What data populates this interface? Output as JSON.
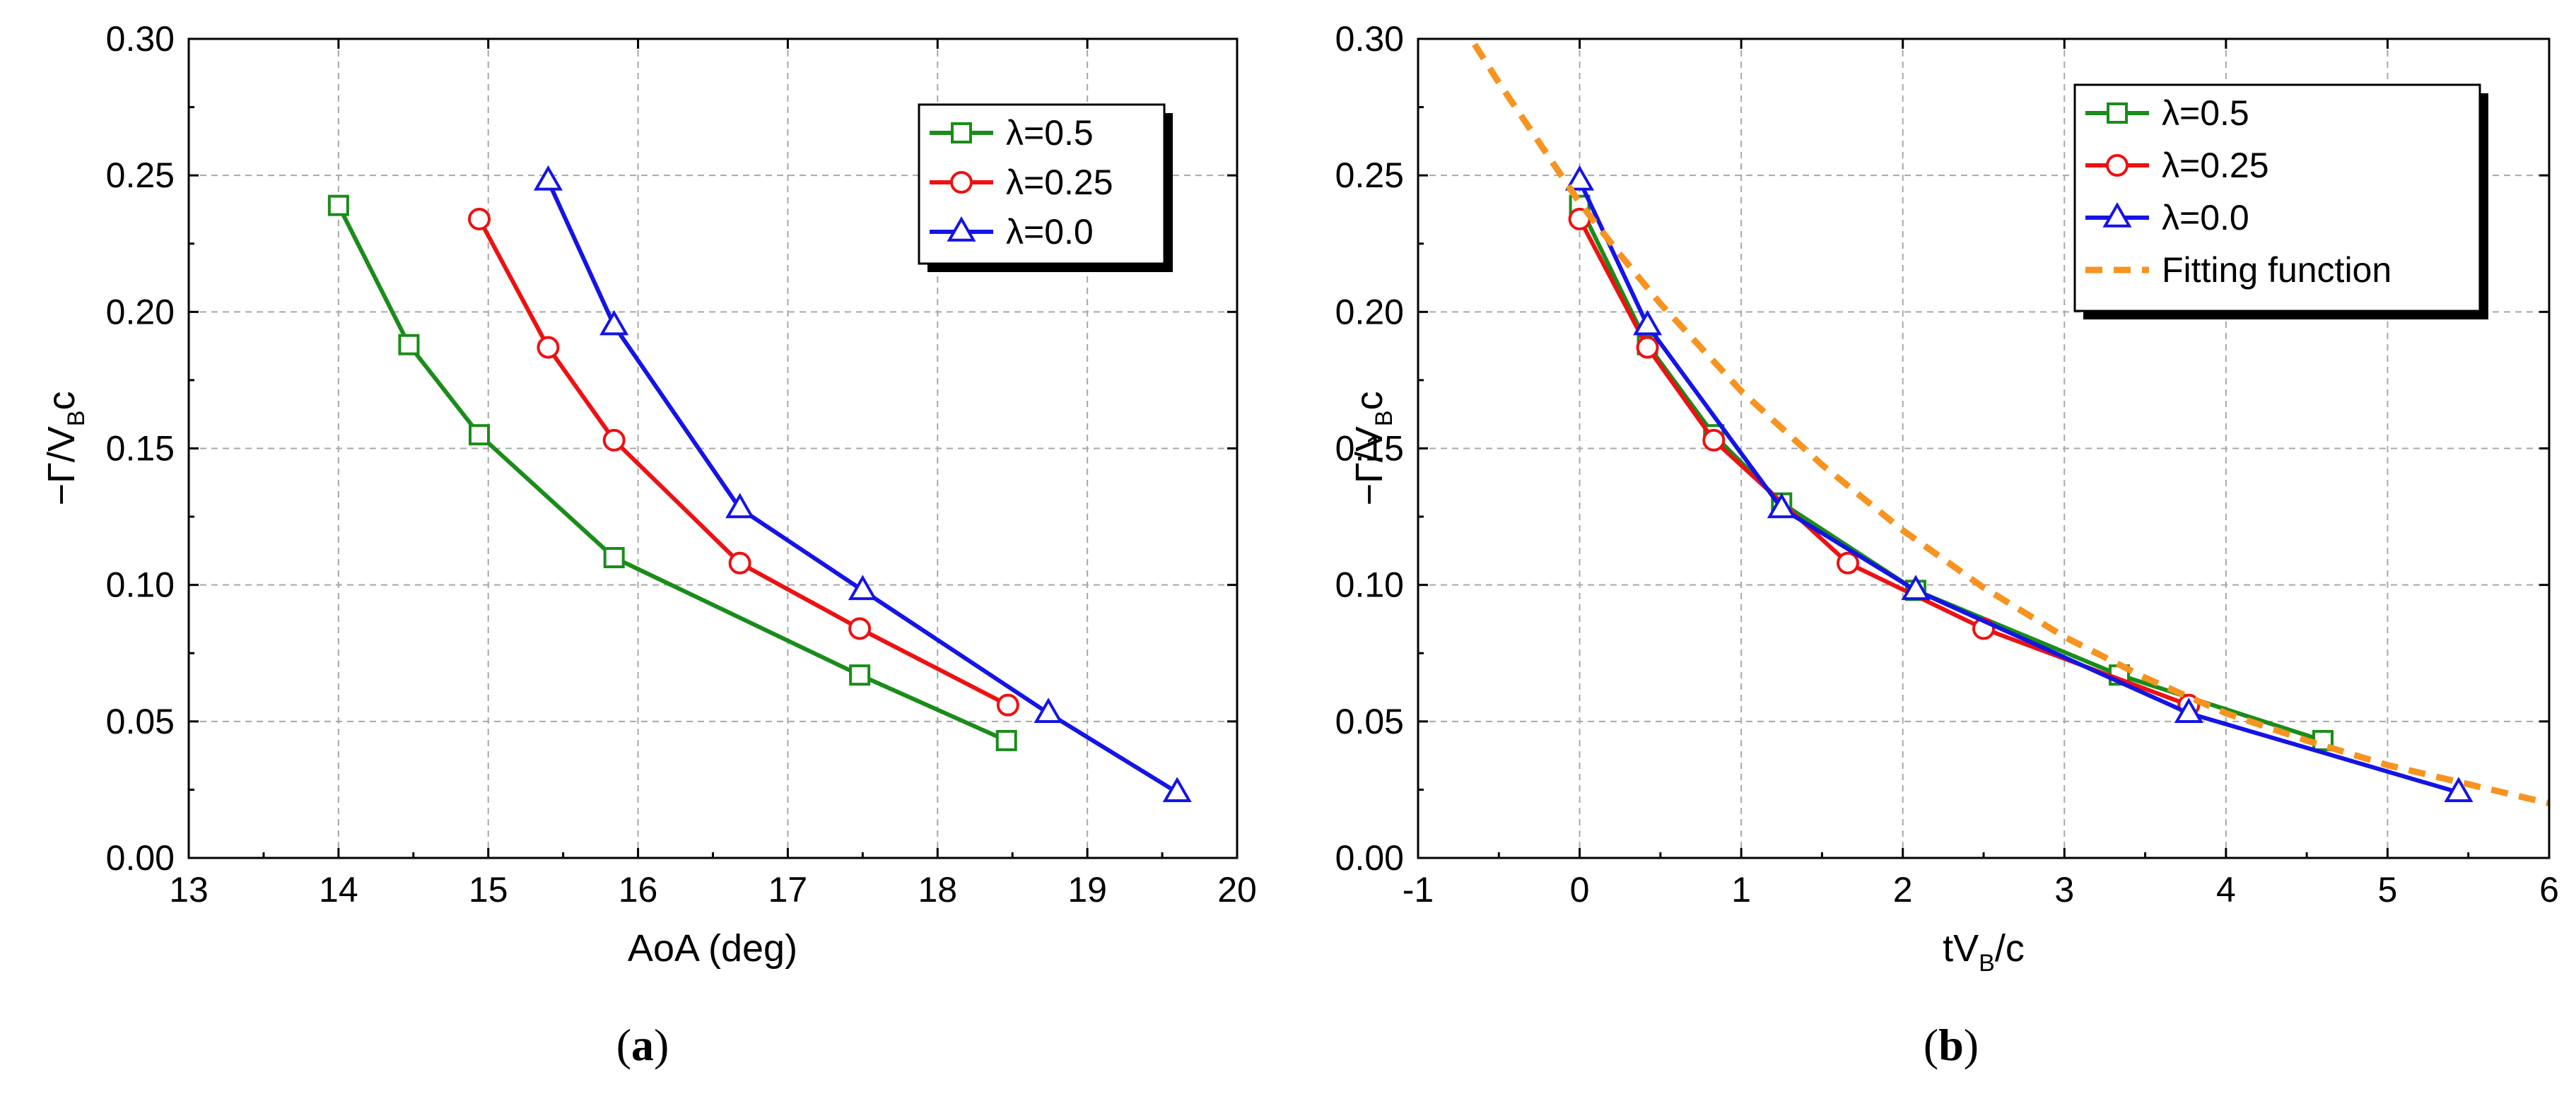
{
  "chart_data": [
    {
      "type": "line",
      "panel": "a",
      "caption_prefix": "(",
      "caption_letter": "a",
      "caption_suffix": ")",
      "xlabel": "AoA (deg)",
      "ylabel": "−Γ/V",
      "ylabel_sub": "B",
      "ylabel_tail": "c",
      "xlim": [
        13,
        20
      ],
      "ylim": [
        0.0,
        0.3
      ],
      "xticks": [
        13,
        14,
        15,
        16,
        17,
        18,
        19,
        20
      ],
      "xtick_labels": [
        "13",
        "14",
        "15",
        "16",
        "17",
        "18",
        "19",
        "20"
      ],
      "yticks": [
        0.0,
        0.05,
        0.1,
        0.15,
        0.2,
        0.25,
        0.3
      ],
      "ytick_labels": [
        "0.00",
        "0.05",
        "0.10",
        "0.15",
        "0.20",
        "0.25",
        "0.30"
      ],
      "grid": true,
      "legend_position": "top-right",
      "series": [
        {
          "name": "λ=0.5",
          "color": "#1a8c1a",
          "marker": "square",
          "x": [
            14.0,
            14.47,
            14.94,
            15.84,
            17.48,
            18.46
          ],
          "y": [
            0.239,
            0.188,
            0.155,
            0.11,
            0.067,
            0.043
          ]
        },
        {
          "name": "λ=0.25",
          "color": "#ee1111",
          "marker": "circle",
          "x": [
            14.94,
            15.4,
            15.84,
            16.68,
            17.48,
            18.47
          ],
          "y": [
            0.234,
            0.187,
            0.153,
            0.108,
            0.084,
            0.056
          ]
        },
        {
          "name": "λ=0.0",
          "color": "#1414e6",
          "marker": "triangle",
          "x": [
            15.4,
            15.84,
            16.68,
            17.5,
            18.74,
            19.6
          ],
          "y": [
            0.248,
            0.195,
            0.128,
            0.098,
            0.053,
            0.024
          ]
        }
      ]
    },
    {
      "type": "line",
      "panel": "b",
      "caption_prefix": "(",
      "caption_letter": "b",
      "caption_suffix": ")",
      "xlabel": "tV",
      "xlabel_sub": "B",
      "xlabel_tail": "/c",
      "ylabel": "−Γ/V",
      "ylabel_sub": "B",
      "ylabel_tail": "c",
      "xlim": [
        -1,
        6
      ],
      "ylim": [
        0.0,
        0.3
      ],
      "xticks": [
        -1,
        0,
        1,
        2,
        3,
        4,
        5,
        6
      ],
      "xtick_labels": [
        "-1",
        "0",
        "1",
        "2",
        "3",
        "4",
        "5",
        "6"
      ],
      "yticks": [
        0.0,
        0.05,
        0.1,
        0.15,
        0.2,
        0.25,
        0.3
      ],
      "ytick_labels": [
        "0.00",
        "0.05",
        "0.10",
        "0.15",
        "0.20",
        "0.25",
        "0.30"
      ],
      "grid": true,
      "legend_position": "top-right",
      "series": [
        {
          "name": "λ=0.5",
          "color": "#1a8c1a",
          "marker": "square",
          "x": [
            0.0,
            0.42,
            0.83,
            1.25,
            2.08,
            3.34,
            4.6
          ],
          "y": [
            0.239,
            0.188,
            0.155,
            0.13,
            0.098,
            0.067,
            0.043
          ]
        },
        {
          "name": "λ=0.25",
          "color": "#ee1111",
          "marker": "circle",
          "x": [
            0.0,
            0.42,
            0.83,
            1.66,
            2.5,
            3.77
          ],
          "y": [
            0.234,
            0.187,
            0.153,
            0.108,
            0.084,
            0.056
          ]
        },
        {
          "name": "λ=0.0",
          "color": "#1414e6",
          "marker": "triangle",
          "x": [
            0.0,
            0.42,
            1.25,
            2.08,
            3.77,
            5.44
          ],
          "y": [
            0.248,
            0.195,
            0.128,
            0.098,
            0.053,
            0.024
          ]
        },
        {
          "name": "Fitting function",
          "color": "#f7931e",
          "marker": "none",
          "dashed": true,
          "x": [
            -0.65,
            -0.5,
            -0.25,
            0.0,
            0.25,
            0.5,
            1.0,
            1.5,
            2.0,
            2.5,
            3.0,
            3.5,
            4.0,
            4.5,
            5.0,
            5.5,
            6.0
          ],
          "y": [
            0.298,
            0.284,
            0.262,
            0.24,
            0.221,
            0.203,
            0.171,
            0.144,
            0.12,
            0.099,
            0.081,
            0.066,
            0.053,
            0.043,
            0.034,
            0.027,
            0.02
          ]
        }
      ]
    }
  ]
}
